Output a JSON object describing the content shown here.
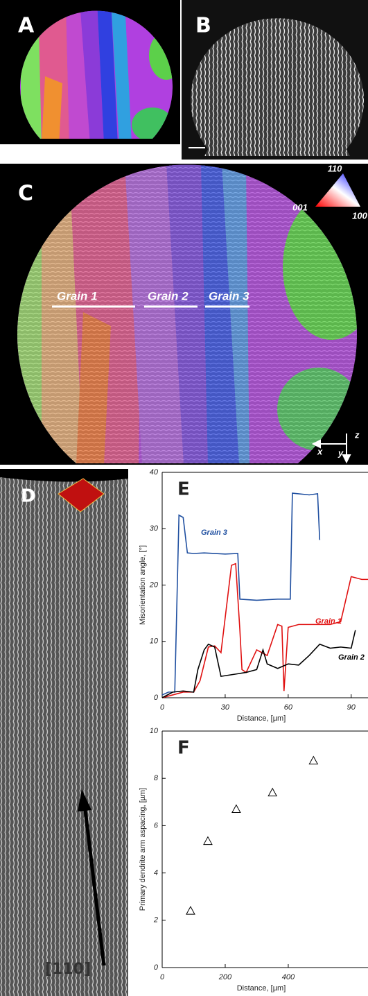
{
  "panels": {
    "a": "A",
    "b": "B",
    "c": "C",
    "d": "D",
    "ipf": [
      "110",
      "001",
      "100"
    ],
    "grains": [
      "Grain 1",
      "Grain 2",
      "Grain 3"
    ],
    "axes": [
      "x",
      "y",
      "z"
    ],
    "direction": "[110]"
  },
  "chart_data": [
    {
      "type": "line",
      "label": "E",
      "xlabel": "Distance, [µm]",
      "ylabel": "Misorientation angle, [°]",
      "xlim": [
        0,
        98
      ],
      "xticks": [
        0,
        30,
        60,
        90
      ],
      "ylim": [
        0,
        40
      ],
      "yticks": [
        0,
        10,
        20,
        30,
        40
      ],
      "series": [
        {
          "name": "Grain 3",
          "color": "#1f4fa0",
          "x": [
            0,
            3,
            6,
            8,
            10,
            12,
            15,
            20,
            30,
            36,
            37,
            45,
            55,
            61,
            62,
            70,
            74,
            75
          ],
          "values": [
            0.5,
            1,
            1,
            32.4,
            32,
            25.7,
            25.6,
            25.7,
            25.5,
            25.6,
            17.5,
            17.3,
            17.5,
            17.5,
            36.3,
            36,
            36.2,
            28
          ]
        },
        {
          "name": "Grain 1",
          "color": "#e01010",
          "x": [
            0,
            5,
            10,
            15,
            18,
            22,
            25,
            28,
            33,
            35,
            37,
            38,
            40,
            45,
            50,
            55,
            57,
            58,
            60,
            65,
            80,
            85,
            90,
            95,
            98
          ],
          "values": [
            0,
            0.5,
            1,
            1,
            3,
            9,
            9.2,
            8,
            23.5,
            23.8,
            12,
            5,
            4.5,
            8.5,
            7.5,
            13,
            12.7,
            1.2,
            12.5,
            13,
            13,
            13.5,
            21.5,
            21,
            21
          ]
        },
        {
          "name": "Grain 2",
          "color": "#000000",
          "x": [
            0,
            5,
            10,
            15,
            17,
            20,
            22,
            25,
            28,
            35,
            40,
            45,
            48,
            50,
            55,
            60,
            65,
            70,
            75,
            80,
            85,
            90,
            92
          ],
          "values": [
            0,
            1,
            1.2,
            1,
            5,
            8.5,
            9.5,
            9,
            3.8,
            4.2,
            4.5,
            5,
            8.5,
            6,
            5.2,
            6,
            5.8,
            7.5,
            9.5,
            8.8,
            9,
            8.8,
            12
          ]
        }
      ]
    },
    {
      "type": "scatter",
      "label": "F",
      "xlabel": "Distance, [µm]",
      "ylabel": "Primary dendrite arm aspacing, [µm]",
      "xlim": [
        0,
        653
      ],
      "xticks": [
        0,
        200,
        400
      ],
      "ylim": [
        0,
        10
      ],
      "yticks": [
        0,
        2,
        4,
        6,
        8,
        10
      ],
      "series": [
        {
          "color": "#000000",
          "x": [
            90,
            145,
            235,
            350,
            480
          ],
          "values": [
            2.4,
            5.35,
            6.7,
            7.4,
            8.75
          ]
        }
      ]
    }
  ]
}
